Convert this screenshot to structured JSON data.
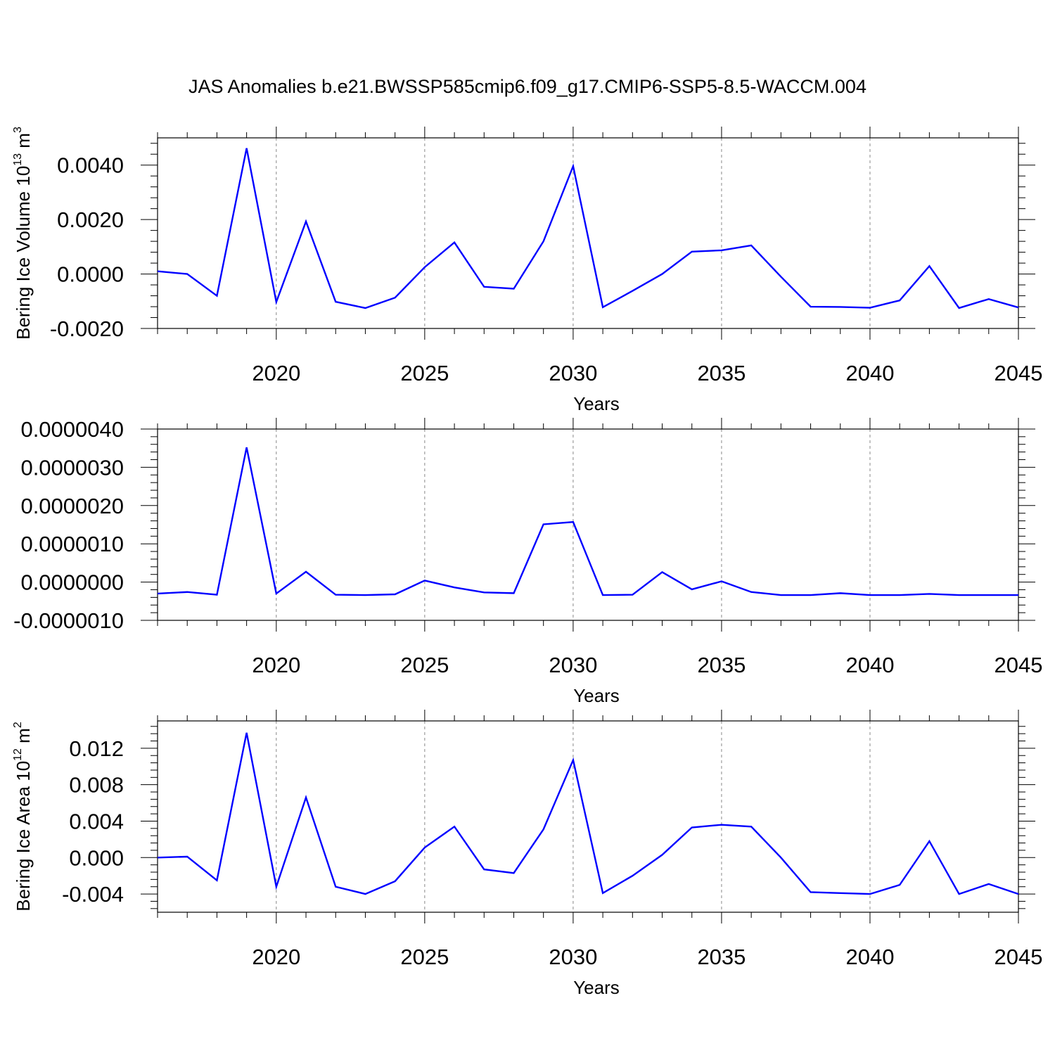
{
  "title": "JAS Anomalies b.e21.BWSSP585cmip6.f09_g17.CMIP6-SSP5-8.5-WACCM.004",
  "line_color": "#0000ff",
  "chart_data": [
    {
      "type": "line",
      "ylabel_base": "Bering Ice Volume 10",
      "ylabel_exp": "13",
      "ylabel_unit": " m",
      "ylabel_unit_exp": "3",
      "xlabel": "Years",
      "xlim": [
        2016,
        2045
      ],
      "ylim": [
        -0.002,
        0.005
      ],
      "xticks": [
        2020,
        2025,
        2030,
        2035,
        2040,
        2045
      ],
      "xtick_labels": [
        "2020",
        "2025",
        "2030",
        "2035",
        "2040",
        "2045"
      ],
      "yticks": [
        -0.002,
        0.0,
        0.002,
        0.004
      ],
      "ytick_labels": [
        "-0.0020",
        "0.0000",
        "0.0020",
        "0.0040"
      ],
      "grid": "vertical dashed at major x ticks",
      "x": [
        2016,
        2017,
        2018,
        2019,
        2020,
        2021,
        2022,
        2023,
        2024,
        2025,
        2026,
        2027,
        2028,
        2029,
        2030,
        2031,
        2032,
        2033,
        2034,
        2035,
        2036,
        2037,
        2038,
        2039,
        2040,
        2041,
        2042,
        2043,
        2044,
        2045
      ],
      "series": [
        {
          "values": [
            0.0001,
            0.0,
            -0.0008,
            0.00462,
            -0.00103,
            0.00193,
            -0.00102,
            -0.00125,
            -0.00087,
            0.00025,
            0.00116,
            -0.00047,
            -0.00054,
            0.0012,
            0.00396,
            -0.00122,
            -0.00062,
            0.0,
            0.00082,
            0.00087,
            0.00105,
            -0.0001,
            -0.0012,
            -0.00121,
            -0.00124,
            -0.00097,
            0.00029,
            -0.00125,
            -0.00092,
            -0.00123
          ]
        }
      ]
    },
    {
      "type": "line",
      "xlabel": "Years",
      "xlim": [
        2016,
        2045
      ],
      "ylim": [
        -1e-06,
        4e-06
      ],
      "xticks": [
        2020,
        2025,
        2030,
        2035,
        2040,
        2045
      ],
      "xtick_labels": [
        "2020",
        "2025",
        "2030",
        "2035",
        "2040",
        "2045"
      ],
      "yticks": [
        -1e-06,
        0.0,
        1e-06,
        2e-06,
        3e-06,
        4e-06
      ],
      "ytick_labels": [
        "-0.0000010",
        "0.0000000",
        "0.0000010",
        "0.0000020",
        "0.0000030",
        "0.0000040"
      ],
      "grid": "vertical dashed at major x ticks",
      "x": [
        2016,
        2017,
        2018,
        2019,
        2020,
        2021,
        2022,
        2023,
        2024,
        2025,
        2026,
        2027,
        2028,
        2029,
        2030,
        2031,
        2032,
        2033,
        2034,
        2035,
        2036,
        2037,
        2038,
        2039,
        2040,
        2041,
        2042,
        2043,
        2044,
        2045
      ],
      "series": [
        {
          "values": [
            -3e-07,
            -2.6e-07,
            -3.3e-07,
            3.52e-06,
            -3e-07,
            2.7e-07,
            -3.3e-07,
            -3.4e-07,
            -3.2e-07,
            4e-08,
            -1.4e-07,
            -2.7e-07,
            -2.9e-07,
            1.51e-06,
            1.57e-06,
            -3.4e-07,
            -3.3e-07,
            2.6e-07,
            -1.9e-07,
            2e-08,
            -2.6e-07,
            -3.4e-07,
            -3.4e-07,
            -2.9e-07,
            -3.4e-07,
            -3.4e-07,
            -3.1e-07,
            -3.4e-07,
            -3.4e-07,
            -3.4e-07
          ]
        }
      ]
    },
    {
      "type": "line",
      "ylabel_base": "Bering Ice Area 10",
      "ylabel_exp": "12",
      "ylabel_unit": " m",
      "ylabel_unit_exp": "2",
      "xlabel": "Years",
      "xlim": [
        2016,
        2045
      ],
      "ylim": [
        -0.006,
        0.015
      ],
      "xticks": [
        2020,
        2025,
        2030,
        2035,
        2040,
        2045
      ],
      "xtick_labels": [
        "2020",
        "2025",
        "2030",
        "2035",
        "2040",
        "2045"
      ],
      "yticks": [
        -0.004,
        0.0,
        0.004,
        0.008,
        0.012
      ],
      "ytick_labels": [
        "-0.004",
        "0.000",
        "0.004",
        "0.008",
        "0.012"
      ],
      "grid": "vertical dashed at major x ticks",
      "x": [
        2016,
        2017,
        2018,
        2019,
        2020,
        2021,
        2022,
        2023,
        2024,
        2025,
        2026,
        2027,
        2028,
        2029,
        2030,
        2031,
        2032,
        2033,
        2034,
        2035,
        2036,
        2037,
        2038,
        2039,
        2040,
        2041,
        2042,
        2043,
        2044,
        2045
      ],
      "series": [
        {
          "values": [
            0.0,
            0.0001,
            -0.0025,
            0.0137,
            -0.0032,
            0.0066,
            -0.0032,
            -0.004,
            -0.0026,
            0.0011,
            0.0034,
            -0.0013,
            -0.0017,
            0.0031,
            0.0107,
            -0.0039,
            -0.002,
            0.0003,
            0.0033,
            0.0036,
            0.0034,
            0.0,
            -0.0038,
            -0.0039,
            -0.004,
            -0.003,
            0.0018,
            -0.004,
            -0.0029,
            -0.004
          ]
        }
      ]
    }
  ]
}
